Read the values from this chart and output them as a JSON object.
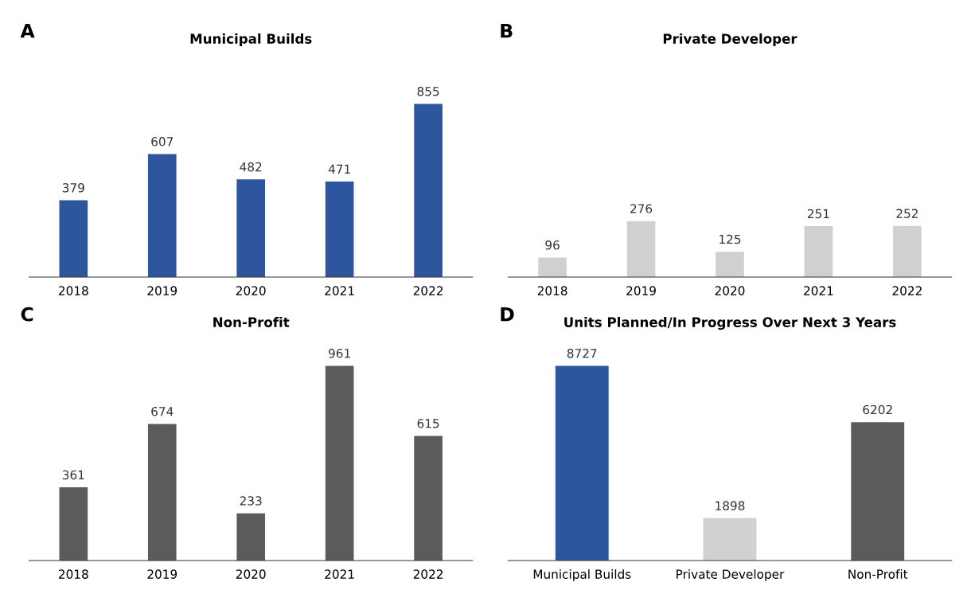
{
  "chart_data": [
    {
      "type": "bar",
      "title": "Municipal Builds",
      "annotations": [
        "A"
      ],
      "categories": [
        "2018",
        "2019",
        "2020",
        "2021",
        "2022"
      ],
      "values": [
        379,
        607,
        482,
        471,
        855
      ],
      "color": "#2e569f",
      "data_labels": true,
      "tick_labels": "x",
      "grid": false
    },
    {
      "type": "bar",
      "title": "Private Developer",
      "annotations": [
        "B"
      ],
      "categories": [
        "2018",
        "2019",
        "2020",
        "2021",
        "2022"
      ],
      "values": [
        96,
        276,
        125,
        251,
        252
      ],
      "color": "#d0d0d0",
      "data_labels": true,
      "tick_labels": "x",
      "grid": false
    },
    {
      "type": "bar",
      "title": "Non-Profit",
      "annotations": [
        "C"
      ],
      "categories": [
        "2018",
        "2019",
        "2020",
        "2021",
        "2022"
      ],
      "values": [
        361,
        674,
        233,
        961,
        615
      ],
      "color": "#5b5b5b",
      "data_labels": true,
      "tick_labels": "x",
      "grid": false
    },
    {
      "type": "bar",
      "title": "Units Planned/In Progress Over Next 3 Years",
      "annotations": [
        "D"
      ],
      "categories": [
        "Municipal Builds",
        "Private Developer",
        "Non-Profit"
      ],
      "values": [
        8727,
        1898,
        6202
      ],
      "colors": [
        "#2e569f",
        "#d0d0d0",
        "#5b5b5b"
      ],
      "data_labels": true,
      "tick_labels": "x",
      "grid": false
    }
  ]
}
